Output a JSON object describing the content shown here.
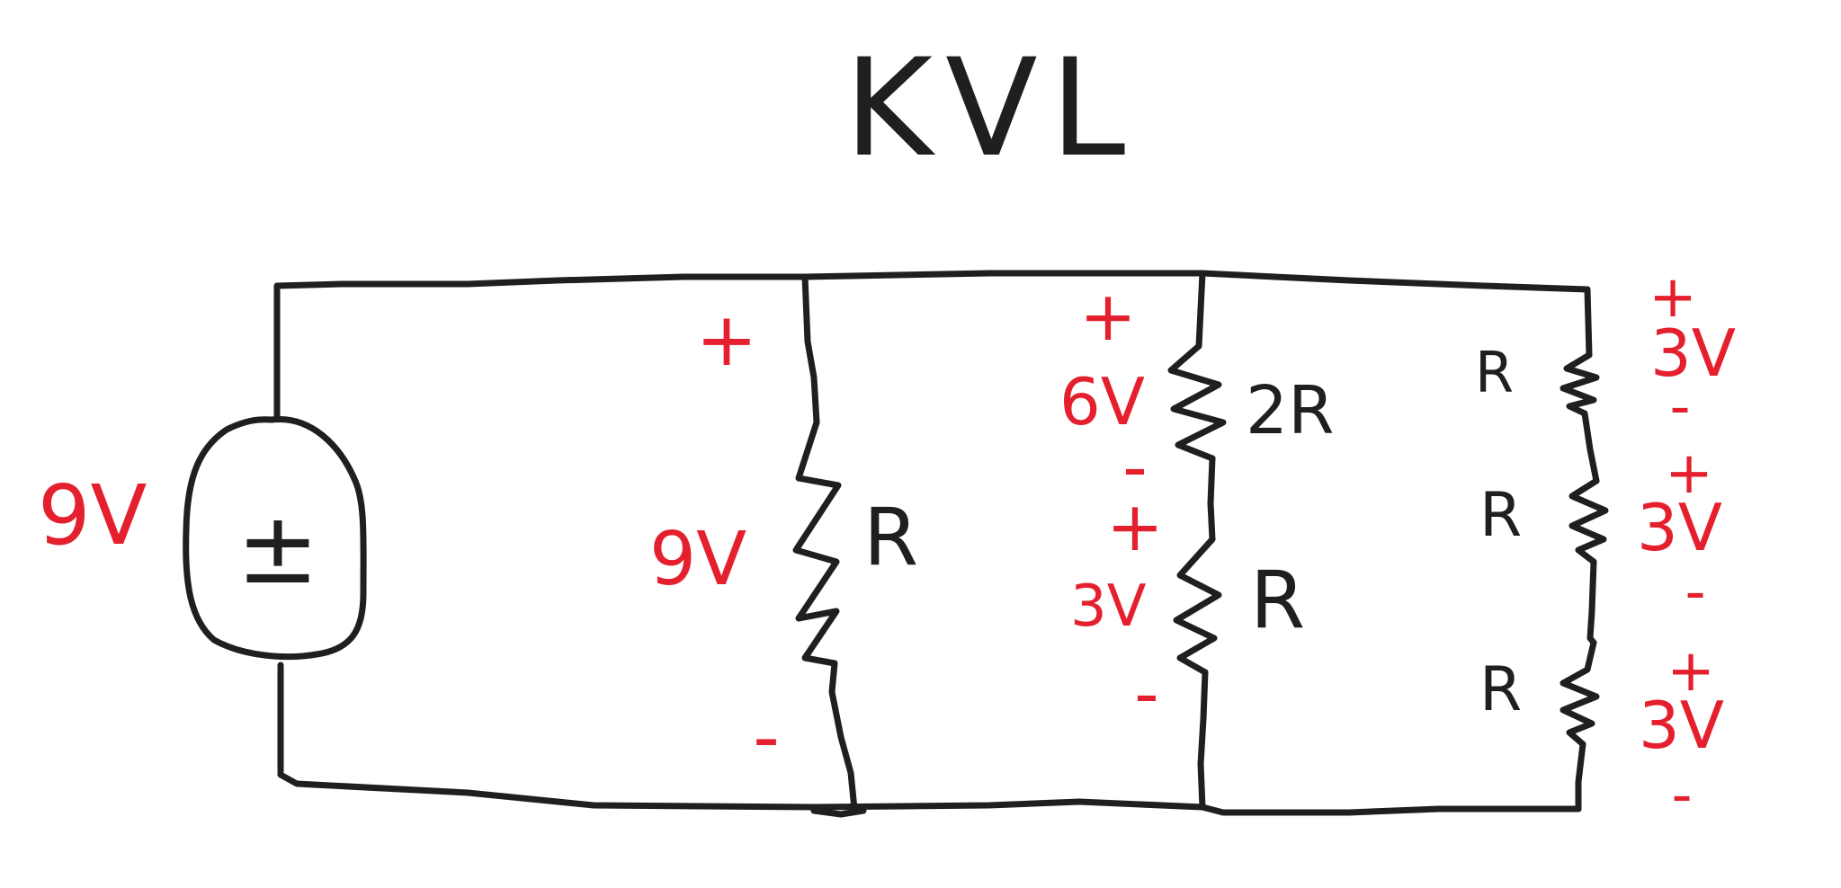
{
  "title": "KVL",
  "colors": {
    "ink": "#1f1f1f",
    "annotation": "#e5202e",
    "background": "#ffffff"
  },
  "source": {
    "voltage_label": "9V",
    "symbol": "±"
  },
  "branch1": {
    "resistor_label": "R",
    "voltage_label": "9V",
    "plus": "+",
    "minus": "-"
  },
  "branch2": {
    "top_resistor_label": "2R",
    "top_voltage_label": "6V",
    "top_plus": "+",
    "top_minus": "-",
    "bottom_resistor_label": "R",
    "bottom_voltage_label": "3V",
    "bottom_plus": "+",
    "bottom_minus": "-"
  },
  "branch3": {
    "resistors": [
      {
        "label": "R",
        "voltage": "3V",
        "plus": "+",
        "minus": "-"
      },
      {
        "label": "R",
        "voltage": "3V",
        "plus": "+",
        "minus": "-"
      },
      {
        "label": "R",
        "voltage": "3V",
        "plus": "+",
        "minus": "-"
      }
    ]
  }
}
